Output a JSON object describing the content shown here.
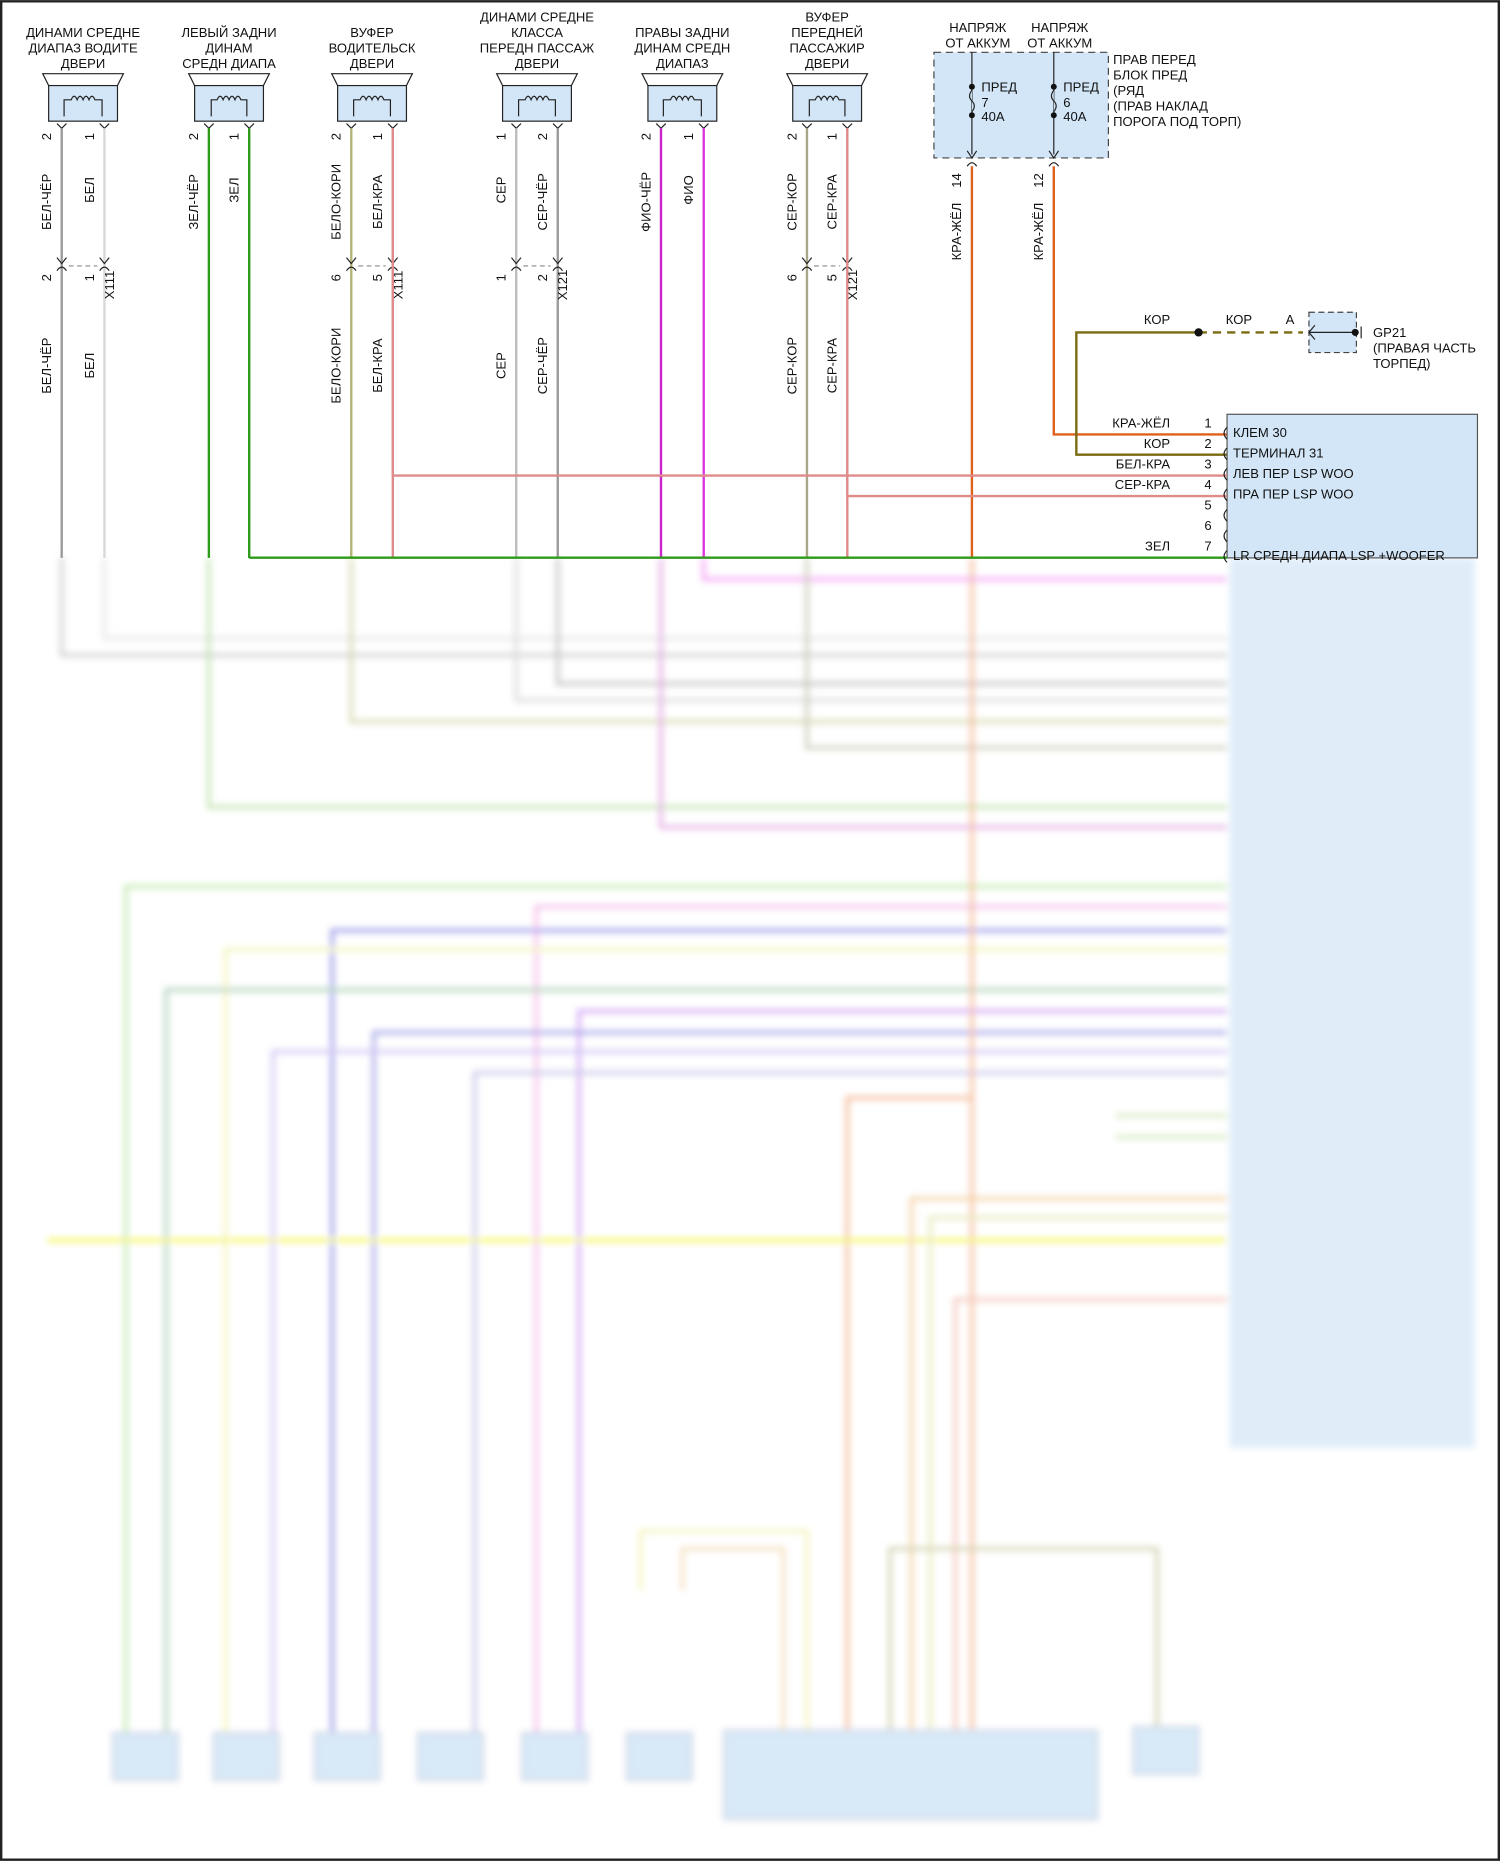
{
  "speakers": [
    {
      "title": [
        "ДИНАМИ СРЕДНЕ",
        "ДИАПАЗ ВОДИТЕ",
        "ДВЕРИ"
      ],
      "pins": [
        "2",
        "1"
      ],
      "wires": [
        "БЕЛ-ЧЁР",
        "БЕЛ"
      ],
      "connector": {
        "name": "X111",
        "pins": [
          "2",
          "1"
        ],
        "wires": [
          "БЕЛ-ЧЁР",
          "БЕЛ"
        ]
      },
      "colors": [
        "#9a9a9a",
        "#d8d8d8"
      ]
    },
    {
      "title": [
        "ЛЕВЫЙ ЗАДНИ",
        "ДИНАМ",
        "СРЕДН ДИАПА"
      ],
      "pins": [
        "2",
        "1"
      ],
      "wires": [
        "ЗЕЛ-ЧЁР",
        "ЗЕЛ"
      ],
      "connector": null,
      "colors": [
        "#2e9a1a",
        "#2e9a1a"
      ]
    },
    {
      "title": [
        "ВУФЕР",
        "ВОДИТЕЛЬСК",
        "ДВЕРИ"
      ],
      "pins": [
        "2",
        "1"
      ],
      "wires": [
        "БЕЛО-КОРИ",
        "БЕЛ-КРА"
      ],
      "connector": {
        "name": "X111",
        "pins": [
          "6",
          "5"
        ],
        "wires": [
          "БЕЛО-КОРИ",
          "БЕЛ-КРА"
        ]
      },
      "colors": [
        "#b4b478",
        "#e08a8a"
      ]
    },
    {
      "title": [
        "ДИНАМИ СРЕДНЕ",
        "КЛАССА",
        "ПЕРЕДН ПАССАЖ",
        "ДВЕРИ"
      ],
      "pins": [
        "1",
        "2"
      ],
      "wires": [
        "СЕР",
        "СЕР-ЧЁР"
      ],
      "connector": {
        "name": "X121",
        "pins": [
          "1",
          "2"
        ],
        "wires": [
          "СЕР",
          "СЕР-ЧЁР"
        ]
      },
      "colors": [
        "#bdbdbd",
        "#9a9a9a"
      ]
    },
    {
      "title": [
        "ПРАВЫ ЗАДНИ",
        "ДИНАМ СРЕДН",
        "ДИАПАЗ"
      ],
      "pins": [
        "2",
        "1"
      ],
      "wires": [
        "ФИО-ЧЁР",
        "ФИО"
      ],
      "connector": null,
      "colors": [
        "#cc22cc",
        "#dd33dd"
      ]
    },
    {
      "title": [
        "ВУФЕР",
        "ПЕРЕДНЕЙ",
        "ПАССАЖИР",
        "ДВЕРИ"
      ],
      "pins": [
        "2",
        "1"
      ],
      "wires": [
        "СЕР-КОР",
        "СЕР-КРА"
      ],
      "connector": {
        "name": "X121",
        "pins": [
          "6",
          "5"
        ],
        "wires": [
          "СЕР-КОР",
          "СЕР-КРА"
        ]
      },
      "colors": [
        "#a8a888",
        "#e08a8a"
      ]
    }
  ],
  "fuse_block": {
    "label": [
      "ПРАВ ПЕРЕД",
      "БЛОК ПРЕД",
      "(РЯД",
      "(ПРАВ НАКЛАД",
      "ПОРОГА ПОД ТОРП)"
    ],
    "fuses": [
      {
        "source": [
          "НАПРЯЖ",
          "ОТ АККУМ"
        ],
        "name": "ПРЕД",
        "number": "7",
        "rating": "40A",
        "pin": "14",
        "wire": "КРА-ЖЁЛ"
      },
      {
        "source": [
          "НАПРЯЖ",
          "ОТ АККУМ"
        ],
        "name": "ПРЕД",
        "number": "6",
        "rating": "40A",
        "pin": "12",
        "wire": "КРА-ЖЁЛ"
      }
    ]
  },
  "ground": {
    "wire_left": "КОР",
    "wire_right": "КОР",
    "pin": "A",
    "name": "GP21",
    "location": [
      "(ПРАВАЯ ЧАСТЬ",
      "ТОРПЕД)"
    ]
  },
  "module": {
    "pins": [
      {
        "pin": "1",
        "wire": "КРА-ЖЁЛ",
        "function": "КЛЕМ 30"
      },
      {
        "pin": "2",
        "wire": "КОР",
        "function": "ТЕРМИНАЛ 31"
      },
      {
        "pin": "3",
        "wire": "БЕЛ-КРА",
        "function": "ЛЕВ ПЕР LSP WOO"
      },
      {
        "pin": "4",
        "wire": "СЕР-КРА",
        "function": "ПРА ПЕР LSP WOO"
      },
      {
        "pin": "5",
        "wire": "",
        "function": ""
      },
      {
        "pin": "6",
        "wire": "",
        "function": ""
      },
      {
        "pin": "7",
        "wire": "ЗЕЛ",
        "function": "LR СРЕДН ДИАПА LSP +WOOFER"
      }
    ]
  },
  "colors": {
    "red_yellow": "#e0601a",
    "brown": "#7a6a10",
    "module_fill": "#d3e6f7",
    "fuse_fill": "#d3e6f7"
  }
}
